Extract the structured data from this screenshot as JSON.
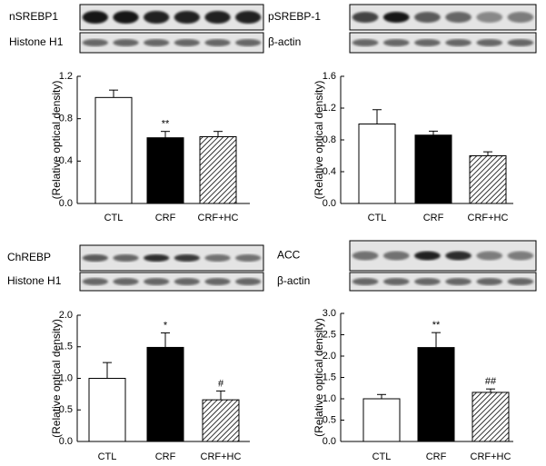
{
  "chart_data": [
    {
      "type": "bar",
      "blot_labels": [
        "nSREBP1",
        "Histone H1"
      ],
      "ylabel": "(Relative optical density)",
      "categories": [
        "CTL",
        "CRF",
        "CRF+HC"
      ],
      "values": [
        1.0,
        0.62,
        0.63
      ],
      "errors": [
        0.07,
        0.06,
        0.05
      ],
      "annotations": [
        null,
        "**",
        null
      ],
      "fills": [
        "#ffffff",
        "#000000",
        "hatched"
      ],
      "ylim": [
        0,
        1.2
      ],
      "yticks": [
        {
          "value": 0,
          "label": "0.0"
        },
        0.4,
        0.8,
        1.2
      ]
    },
    {
      "type": "bar",
      "blot_labels": [
        "pSREBP-1",
        "β-actin"
      ],
      "ylabel": "(Relative optical density)",
      "categories": [
        "CTL",
        "CRF",
        "CRF+HC"
      ],
      "values": [
        1.0,
        0.86,
        0.6
      ],
      "errors": [
        0.18,
        0.05,
        0.05
      ],
      "annotations": [
        null,
        null,
        null
      ],
      "fills": [
        "#ffffff",
        "#000000",
        "hatched"
      ],
      "ylim": [
        0,
        1.6
      ],
      "yticks": [
        {
          "value": 0,
          "label": "0.0"
        },
        0.4,
        0.8,
        1.2,
        1.6
      ]
    },
    {
      "type": "bar",
      "blot_labels": [
        "ChREBP",
        "Histone H1"
      ],
      "ylabel": "(Relative optical density)",
      "categories": [
        "CTL",
        "CRF",
        "CRF+HC"
      ],
      "values": [
        1.0,
        1.49,
        0.66
      ],
      "errors": [
        0.25,
        0.23,
        0.14
      ],
      "annotations": [
        null,
        "*",
        "#"
      ],
      "fills": [
        "#ffffff",
        "#000000",
        "hatched"
      ],
      "ylim": [
        0,
        2.0
      ],
      "yticks": [
        {
          "value": 0,
          "label": "0.0"
        },
        0.5,
        {
          "value": 1,
          "label": "1.0"
        },
        1.5,
        {
          "value": 2,
          "label": "2.0"
        }
      ]
    },
    {
      "type": "bar",
      "blot_labels": [
        "ACC",
        "β-actin"
      ],
      "ylabel": "(Relative optical density)",
      "categories": [
        "CTL",
        "CRF",
        "CRF+HC"
      ],
      "values": [
        1.0,
        2.2,
        1.15
      ],
      "errors": [
        0.1,
        0.35,
        0.08
      ],
      "annotations": [
        null,
        "**",
        "##"
      ],
      "fills": [
        "#ffffff",
        "#000000",
        "hatched"
      ],
      "ylim": [
        0,
        3.0
      ],
      "yticks": [
        {
          "value": 0,
          "label": "0.0"
        },
        0.5,
        {
          "value": 1,
          "label": "1.0"
        },
        1.5,
        {
          "value": 2,
          "label": "2.0"
        },
        2.5,
        {
          "value": 3,
          "label": "3.0"
        }
      ]
    }
  ]
}
